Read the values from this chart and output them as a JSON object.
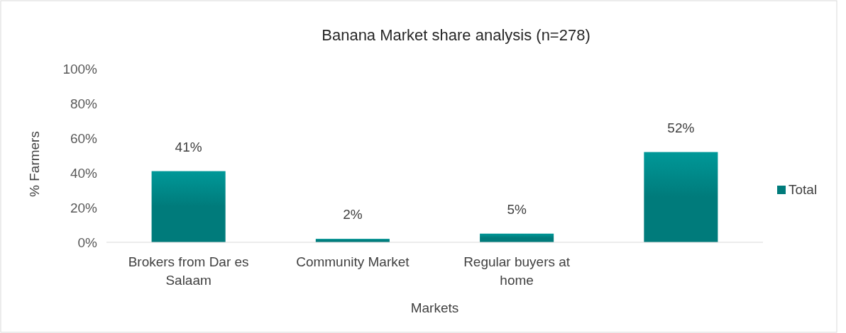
{
  "chart_data": {
    "type": "bar",
    "title": "Banana Market share analysis (n=278)",
    "xlabel": "Markets",
    "ylabel": "% Farmers",
    "categories": [
      "Brokers from Dar es Salaam",
      "Community Market",
      "Regular buyers at home",
      null
    ],
    "series": [
      {
        "name": "Total",
        "color": "#007b7b",
        "values": [
          41,
          2,
          5,
          52
        ],
        "value_labels": [
          "41%",
          "2%",
          "5%",
          "52%"
        ]
      }
    ],
    "ylim": [
      0,
      100
    ],
    "yticks": [
      {
        "value": 0,
        "label": "0%"
      },
      {
        "value": 20,
        "label": "20%"
      },
      {
        "value": 40,
        "label": "40%"
      },
      {
        "value": 60,
        "label": "60%"
      },
      {
        "value": 80,
        "label": "80%"
      },
      {
        "value": 100,
        "label": "100%"
      }
    ],
    "grid": false,
    "legend": "right"
  }
}
